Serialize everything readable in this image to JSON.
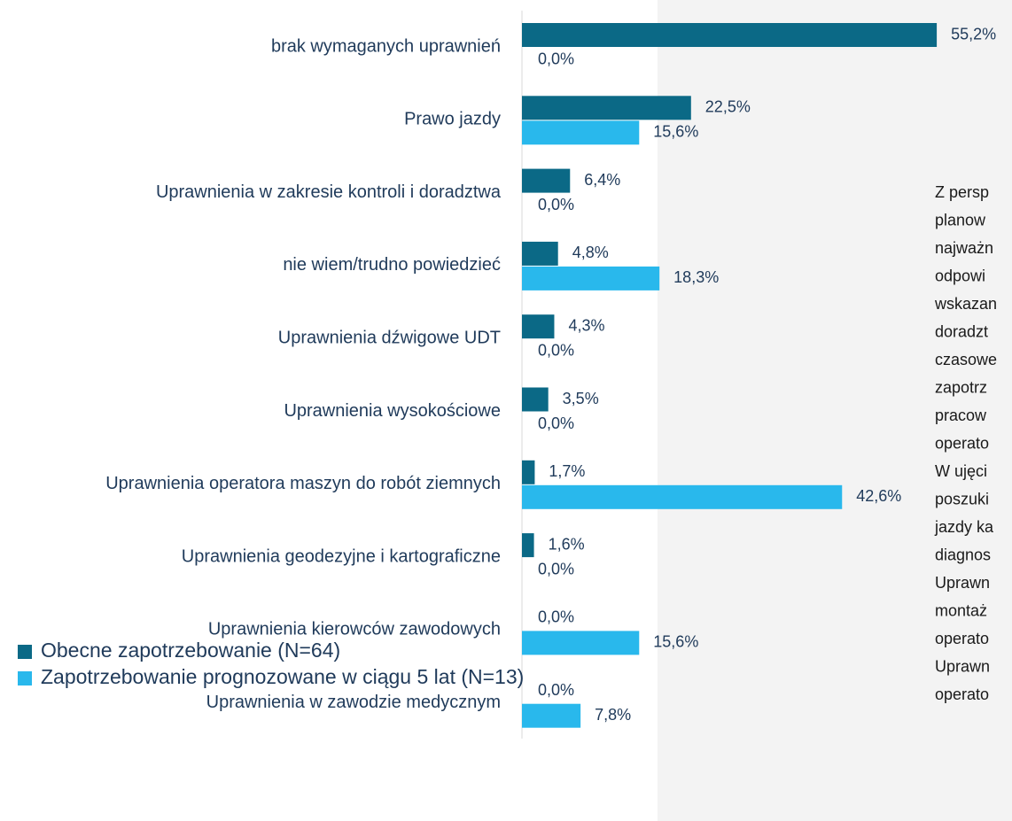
{
  "chart_data": {
    "type": "bar",
    "orientation": "horizontal",
    "categories": [
      "brak wymaganych uprawnień",
      "Prawo jazdy",
      "Uprawnienia w zakresie kontroli i doradztwa",
      "nie wiem/trudno powiedzieć",
      "Uprawnienia dźwigowe UDT",
      "Uprawnienia wysokościowe",
      "Uprawnienia operatora maszyn do robót ziemnych",
      "Uprawnienia geodezyjne i kartograficzne",
      "Uprawnienia kierowców zawodowych",
      "Uprawnienia w zawodzie medycznym"
    ],
    "series": [
      {
        "name": "Obecne zapotrzebowanie (N=64)",
        "color": "#0b6986",
        "values": [
          55.2,
          22.5,
          6.4,
          4.8,
          4.3,
          3.5,
          1.7,
          1.6,
          0,
          0
        ],
        "value_labels": [
          "55,2%",
          "22,5%",
          "6,4%",
          "4,8%",
          "4,3%",
          "3,5%",
          "1,7%",
          "1,6%",
          "0,0%",
          "0,0%"
        ]
      },
      {
        "name": "Zapotrzebowanie prognozowane w ciągu 5 lat (N=13)",
        "color": "#29b8ec",
        "values": [
          0,
          15.6,
          0,
          18.3,
          0,
          0,
          42.6,
          0,
          15.6,
          7.8
        ],
        "value_labels": [
          "0,0%",
          "15,6%",
          "0,0%",
          "18,3%",
          "0,0%",
          "0,0%",
          "42,6%",
          "0,0%",
          "15,6%",
          "7,8%"
        ]
      }
    ],
    "annotation": [
      "Z persp",
      "planow",
      "najważn",
      "odpowi",
      "wskazan",
      "doradzt",
      "czasowe",
      "zapotrz",
      "pracow",
      "operato",
      "W ujęci",
      "poszuki",
      "jazdy ka",
      "diagnos",
      "Uprawn",
      "montaż",
      "operato",
      "Uprawn",
      "operato"
    ]
  }
}
